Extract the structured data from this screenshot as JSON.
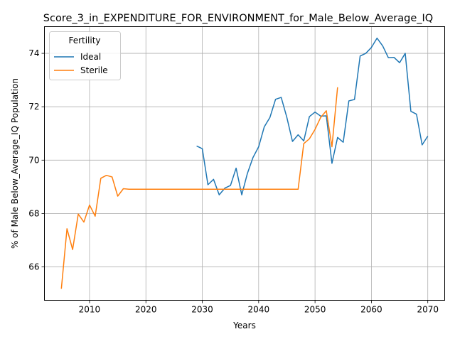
{
  "chart_data": {
    "type": "line",
    "title": "Score_3_in_EXPENDITURE_FOR_ENVIRONMENT_for_Male_Below_Average_IQ",
    "xlabel": "Years",
    "ylabel": "% of Male Below_Average_IQ Population",
    "xlim": [
      2002,
      2073
    ],
    "ylim": [
      64.75,
      75.0
    ],
    "x_ticks": [
      2010,
      2020,
      2030,
      2040,
      2050,
      2060,
      2070
    ],
    "y_ticks": [
      66,
      68,
      70,
      72,
      74
    ],
    "grid": true,
    "legend": {
      "title": "Fertility",
      "placement": "top-left"
    },
    "series": [
      {
        "name": "Ideal",
        "color": "#1f77b4",
        "x": [
          2029,
          2030,
          2031,
          2032,
          2033,
          2034,
          2035,
          2036,
          2037,
          2038,
          2039,
          2040,
          2041,
          2042,
          2043,
          2044,
          2045,
          2046,
          2047,
          2048,
          2049,
          2050,
          2051,
          2052,
          2053,
          2054,
          2055,
          2056,
          2057,
          2058,
          2059,
          2060,
          2061,
          2062,
          2063,
          2064,
          2065,
          2066,
          2067,
          2068,
          2069,
          2070
        ],
        "y": [
          70.53,
          70.43,
          69.08,
          69.28,
          68.7,
          68.95,
          69.05,
          69.7,
          68.7,
          69.5,
          70.1,
          70.5,
          71.25,
          71.6,
          72.28,
          72.35,
          71.6,
          70.7,
          70.95,
          70.72,
          71.63,
          71.8,
          71.65,
          71.66,
          69.88,
          70.85,
          70.67,
          72.22,
          72.27,
          73.9,
          74.0,
          74.22,
          74.57,
          74.28,
          73.84,
          73.85,
          73.65,
          74.0,
          71.83,
          71.72,
          70.57,
          70.9
        ]
      },
      {
        "name": "Sterile",
        "color": "#ff7f0e",
        "x": [
          2005,
          2006,
          2007,
          2008,
          2009,
          2010,
          2011,
          2012,
          2013,
          2014,
          2015,
          2016,
          2017,
          2018,
          2019,
          2020,
          2021,
          2022,
          2023,
          2024,
          2025,
          2026,
          2027,
          2028,
          2029,
          2030,
          2031,
          2032,
          2033,
          2034,
          2035,
          2036,
          2037,
          2038,
          2039,
          2040,
          2041,
          2042,
          2043,
          2044,
          2045,
          2046,
          2047,
          2048,
          2049,
          2050,
          2051,
          2052,
          2053,
          2054
        ],
        "y": [
          65.18,
          67.43,
          66.65,
          67.98,
          67.68,
          68.32,
          67.9,
          69.32,
          69.43,
          69.37,
          68.65,
          68.93,
          68.91,
          68.91,
          68.91,
          68.91,
          68.91,
          68.91,
          68.91,
          68.91,
          68.91,
          68.91,
          68.91,
          68.91,
          68.91,
          68.91,
          68.91,
          68.91,
          68.91,
          68.91,
          68.91,
          68.91,
          68.91,
          68.91,
          68.91,
          68.91,
          68.91,
          68.91,
          68.91,
          68.91,
          68.91,
          68.91,
          68.91,
          70.62,
          70.8,
          71.15,
          71.6,
          71.85,
          70.5,
          72.73
        ]
      }
    ]
  }
}
